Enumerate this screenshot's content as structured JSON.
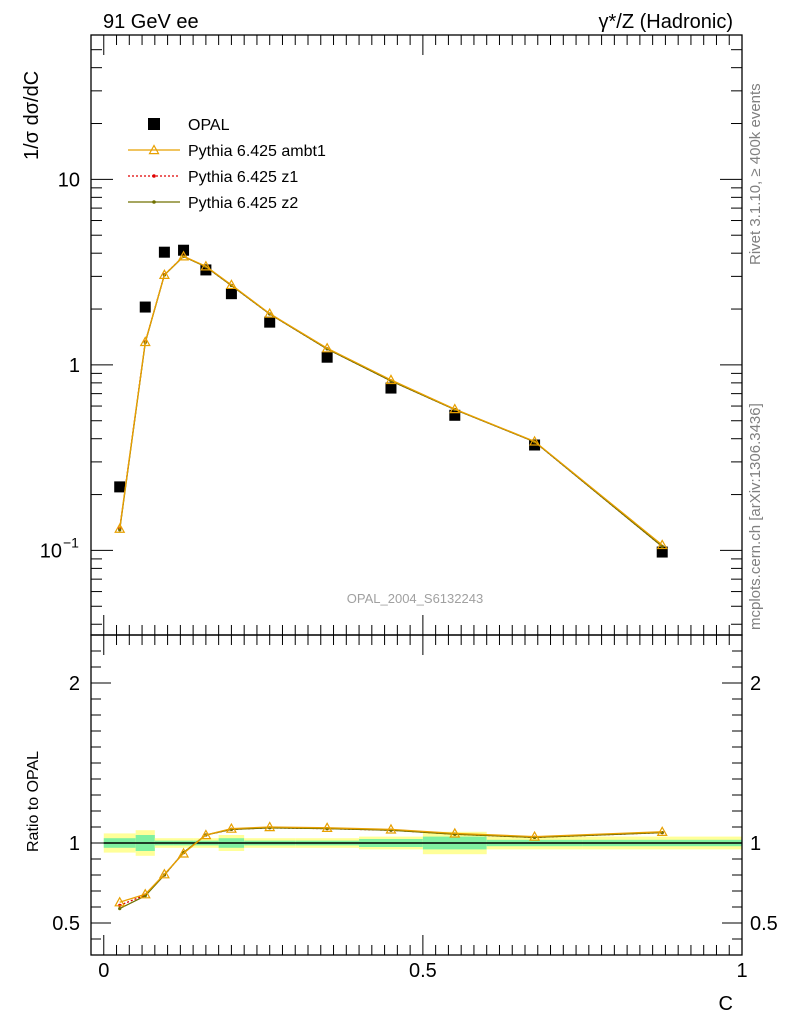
{
  "header": {
    "left": "91 GeV ee",
    "right": "γ*/Z (Hadronic)"
  },
  "side_text": {
    "rivet": "Rivet 3.1.10, ≥ 400k events",
    "source": "mcplots.cern.ch [arXiv:1306.3436]"
  },
  "watermark": "OPAL_2004_S6132243",
  "chart_data": [
    {
      "type": "line",
      "panel": "main",
      "ylabel": "1/σ dσ/dC",
      "yscale": "log",
      "ylim": [
        0.035,
        60
      ],
      "xlim": [
        -0.02,
        1.0
      ],
      "yticks": [
        {
          "value": 0.1,
          "label": "10",
          "exponent": "−1"
        },
        {
          "value": 1,
          "label": "1",
          "exponent": ""
        },
        {
          "value": 10,
          "label": "10",
          "exponent": ""
        }
      ],
      "legend": {
        "placement": "top-left",
        "entries": [
          {
            "label": "OPAL",
            "marker": "square",
            "color": "#000000"
          },
          {
            "label": "Pythia 6.425 ambt1",
            "marker": "triangle",
            "color": "#e8a000"
          },
          {
            "label": "Pythia 6.425 z1",
            "marker": "dot",
            "color": "#e00000",
            "dash": true
          },
          {
            "label": "Pythia 6.425 z2",
            "marker": "dot",
            "color": "#707000"
          }
        ]
      },
      "x": [
        0.025,
        0.065,
        0.095,
        0.125,
        0.16,
        0.2,
        0.26,
        0.35,
        0.45,
        0.55,
        0.675,
        0.875
      ],
      "series": [
        {
          "name": "OPAL",
          "color": "#000000",
          "style": "square",
          "values": [
            0.22,
            2.05,
            4.05,
            4.15,
            3.25,
            2.42,
            1.7,
            1.1,
            0.75,
            0.535,
            0.37,
            0.098
          ]
        },
        {
          "name": "Pythia 6.425 z1",
          "color": "#e00000",
          "style": "dotted",
          "values": [
            0.131,
            1.33,
            3.06,
            3.85,
            3.38,
            2.68,
            1.88,
            1.22,
            0.82,
            0.575,
            0.385,
            0.105
          ]
        },
        {
          "name": "Pythia 6.425 z2",
          "color": "#707000",
          "style": "solid",
          "values": [
            0.129,
            1.32,
            3.05,
            3.84,
            3.38,
            2.68,
            1.88,
            1.22,
            0.82,
            0.575,
            0.385,
            0.105
          ]
        },
        {
          "name": "Pythia 6.425 ambt1",
          "color": "#e8a000",
          "style": "triangle",
          "values": [
            0.131,
            1.33,
            3.06,
            3.85,
            3.4,
            2.7,
            1.89,
            1.23,
            0.83,
            0.578,
            0.387,
            0.107
          ]
        }
      ]
    },
    {
      "type": "line",
      "panel": "ratio",
      "ylabel": "Ratio to OPAL",
      "xlabel": "C",
      "ylim": [
        0.3,
        2.3
      ],
      "xlim": [
        -0.02,
        1.0
      ],
      "yticks": [
        {
          "value": 0.5,
          "label": "0.5"
        },
        {
          "value": 1,
          "label": "1"
        },
        {
          "value": 2,
          "label": "2"
        }
      ],
      "xticks": [
        {
          "value": 0,
          "label": "0"
        },
        {
          "value": 0.5,
          "label": "0.5"
        },
        {
          "value": 1,
          "label": "1"
        }
      ],
      "bands": [
        {
          "x0": 0.0,
          "x1": 0.05,
          "y0": 0.94,
          "y1": 1.06,
          "inner0": 0.97,
          "inner1": 1.03
        },
        {
          "x0": 0.05,
          "x1": 0.08,
          "y0": 0.92,
          "y1": 1.08,
          "inner0": 0.95,
          "inner1": 1.05
        },
        {
          "x0": 0.08,
          "x1": 0.11,
          "y0": 0.97,
          "y1": 1.03,
          "inner0": 0.985,
          "inner1": 1.015
        },
        {
          "x0": 0.11,
          "x1": 0.14,
          "y0": 0.97,
          "y1": 1.03,
          "inner0": 0.985,
          "inner1": 1.015
        },
        {
          "x0": 0.14,
          "x1": 0.18,
          "y0": 0.97,
          "y1": 1.03,
          "inner0": 0.985,
          "inner1": 1.015
        },
        {
          "x0": 0.18,
          "x1": 0.22,
          "y0": 0.95,
          "y1": 1.05,
          "inner0": 0.97,
          "inner1": 1.03
        },
        {
          "x0": 0.22,
          "x1": 0.3,
          "y0": 0.97,
          "y1": 1.03,
          "inner0": 0.985,
          "inner1": 1.015
        },
        {
          "x0": 0.3,
          "x1": 0.4,
          "y0": 0.97,
          "y1": 1.03,
          "inner0": 0.985,
          "inner1": 1.015
        },
        {
          "x0": 0.4,
          "x1": 0.5,
          "y0": 0.96,
          "y1": 1.04,
          "inner0": 0.975,
          "inner1": 1.025
        },
        {
          "x0": 0.5,
          "x1": 0.6,
          "y0": 0.93,
          "y1": 1.07,
          "inner0": 0.96,
          "inner1": 1.04
        },
        {
          "x0": 0.6,
          "x1": 0.75,
          "y0": 0.96,
          "y1": 1.04,
          "inner0": 0.98,
          "inner1": 1.02
        },
        {
          "x0": 0.75,
          "x1": 1.0,
          "y0": 0.96,
          "y1": 1.04,
          "inner0": 0.98,
          "inner1": 1.02
        }
      ],
      "x": [
        0.025,
        0.065,
        0.095,
        0.125,
        0.16,
        0.2,
        0.26,
        0.35,
        0.45,
        0.55,
        0.675,
        0.875
      ],
      "series": [
        {
          "name": "Pythia 6.425 z1",
          "color": "#e00000",
          "style": "dotted",
          "values": [
            0.61,
            0.675,
            0.8,
            0.94,
            1.05,
            1.085,
            1.095,
            1.09,
            1.08,
            1.055,
            1.035,
            1.065
          ]
        },
        {
          "name": "Pythia 6.425 z2",
          "color": "#707000",
          "style": "solid",
          "values": [
            0.59,
            0.67,
            0.8,
            0.94,
            1.05,
            1.085,
            1.095,
            1.09,
            1.08,
            1.055,
            1.035,
            1.065
          ]
        },
        {
          "name": "Pythia 6.425 ambt1",
          "color": "#e8a000",
          "style": "triangle",
          "values": [
            0.63,
            0.68,
            0.805,
            0.935,
            1.05,
            1.09,
            1.1,
            1.095,
            1.085,
            1.06,
            1.04,
            1.07
          ]
        }
      ]
    }
  ]
}
